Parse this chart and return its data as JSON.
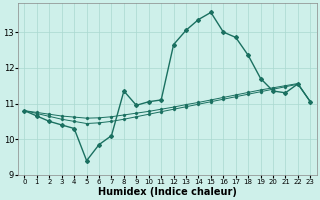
{
  "title": "",
  "xlabel": "Humidex (Indice chaleur)",
  "background_color": "#cef0ea",
  "grid_color": "#aad8d0",
  "line_color": "#1a7060",
  "x_values": [
    0,
    1,
    2,
    3,
    4,
    5,
    6,
    7,
    8,
    9,
    10,
    11,
    12,
    13,
    14,
    15,
    16,
    17,
    18,
    19,
    20,
    21,
    22,
    23
  ],
  "line1_y": [
    10.8,
    10.65,
    10.5,
    10.4,
    10.3,
    9.4,
    9.85,
    10.1,
    11.35,
    10.95,
    11.05,
    11.1,
    12.65,
    13.05,
    13.35,
    13.55,
    13.0,
    12.85,
    12.35,
    11.7,
    11.35,
    11.3,
    11.55,
    11.05
  ],
  "line3_y": [
    10.8,
    10.75,
    10.7,
    10.65,
    10.62,
    10.59,
    10.6,
    10.63,
    10.68,
    10.73,
    10.78,
    10.84,
    10.9,
    10.97,
    11.03,
    11.1,
    11.17,
    11.24,
    11.31,
    11.38,
    11.44,
    11.5,
    11.56,
    11.05
  ],
  "line4_y": [
    10.8,
    10.72,
    10.64,
    10.56,
    10.5,
    10.44,
    10.46,
    10.5,
    10.56,
    10.63,
    10.7,
    10.77,
    10.84,
    10.91,
    10.98,
    11.05,
    11.12,
    11.19,
    11.26,
    11.33,
    11.4,
    11.47,
    11.54,
    11.05
  ],
  "ylim": [
    9.0,
    13.8
  ],
  "yticks": [
    9,
    10,
    11,
    12,
    13
  ],
  "xticks": [
    0,
    1,
    2,
    3,
    4,
    5,
    6,
    7,
    8,
    9,
    10,
    11,
    12,
    13,
    14,
    15,
    16,
    17,
    18,
    19,
    20,
    21,
    22,
    23
  ]
}
